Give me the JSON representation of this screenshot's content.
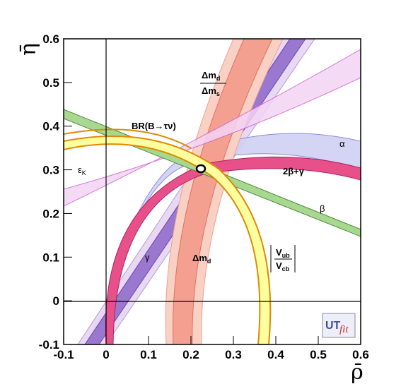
{
  "chart_data": {
    "type": "scatter",
    "xlabel": "ρ̄",
    "ylabel": "η̄",
    "xlim": [
      -0.1,
      0.6
    ],
    "ylim": [
      -0.1,
      0.6
    ],
    "x_ticks": [
      "-0.1",
      "0",
      "0.1",
      "0.2",
      "0.3",
      "0.4",
      "0.5",
      "0.6"
    ],
    "y_ticks": [
      "-0.1",
      "0",
      "0.1",
      "0.2",
      "0.3",
      "0.4",
      "0.5",
      "0.6"
    ],
    "best_fit": {
      "x": 0.222,
      "y": 0.305
    },
    "constraints": [
      {
        "label": "γ",
        "color": "#b0b0e8"
      },
      {
        "label": "Δmd",
        "color": "#f4a090"
      },
      {
        "label": "Δmd/Δms",
        "color": "#9a78d0"
      },
      {
        "label": "|Vub/Vcb|",
        "color": "#ffffa0"
      },
      {
        "label": "BR(B→τν)",
        "color": "#ffffa0"
      },
      {
        "label": "εK",
        "color": "#a8d890"
      },
      {
        "label": "β",
        "color": "#a8d890"
      },
      {
        "label": "α",
        "color": "#f0c8f0"
      },
      {
        "label": "2β+γ",
        "color": "#e8508a"
      }
    ],
    "labels": {
      "gamma": "γ",
      "dmd": "Δm",
      "dmd_sub": "d",
      "ratio_num": "Δm",
      "ratio_num_sub": "d",
      "ratio_den": "Δm",
      "ratio_den_sub": "s",
      "vub": "V",
      "vub_sub": "ub",
      "vcb": "V",
      "vcb_sub": "cb",
      "br": "BR(B→τν)",
      "epsk": "ε",
      "epsk_sub": "K",
      "beta": "β",
      "alpha": "α",
      "twobg": "2β+γ"
    },
    "logo": {
      "text_a": "UT",
      "text_b": "fit"
    }
  }
}
